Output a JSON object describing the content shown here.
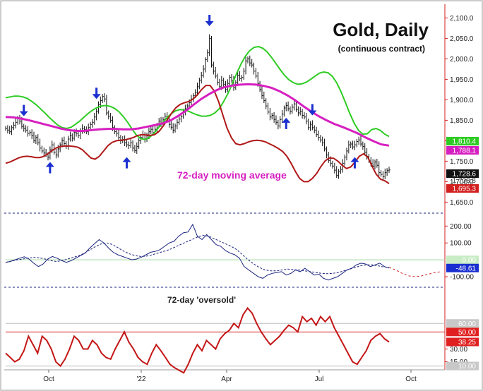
{
  "chart_data": {
    "type": "line",
    "title": "Gold, Daily",
    "subtitle": "(continuous contract)",
    "x_tick_labels": [
      "Oct",
      "'22",
      "Apr",
      "Jul",
      "Oct"
    ],
    "panels": [
      {
        "name": "price",
        "ylim": [
          1630,
          2130
        ],
        "y_ticks": [
          "2,100.0",
          "2,050.0",
          "2,000.0",
          "1,950.0",
          "1,900.0",
          "1,850.0",
          "1,800.0",
          "1,750.0",
          "1,700.0",
          "1,650.0"
        ],
        "y_tick_values": [
          2100,
          2050,
          2000,
          1950,
          1900,
          1850,
          1800,
          1750,
          1700,
          1650
        ],
        "annotation": "72-day moving average",
        "price_close": [
          1830,
          1826,
          1822,
          1832,
          1838,
          1845,
          1855,
          1848,
          1835,
          1830,
          1826,
          1818,
          1820,
          1812,
          1800,
          1808,
          1795,
          1782,
          1775,
          1770,
          1766,
          1760,
          1778,
          1790,
          1772,
          1765,
          1780,
          1790,
          1800,
          1793,
          1786,
          1804,
          1812,
          1806,
          1820,
          1818,
          1812,
          1823,
          1830,
          1827,
          1822,
          1832,
          1840,
          1845,
          1858,
          1872,
          1888,
          1898,
          1908,
          1902,
          1868,
          1860,
          1850,
          1832,
          1822,
          1818,
          1808,
          1800,
          1803,
          1795,
          1790,
          1788,
          1795,
          1782,
          1776,
          1786,
          1800,
          1808,
          1815,
          1803,
          1812,
          1822,
          1828,
          1820,
          1828,
          1838,
          1848,
          1842,
          1852,
          1860,
          1855,
          1840,
          1833,
          1826,
          1836,
          1845,
          1853,
          1860,
          1870,
          1878,
          1885,
          1893,
          1902,
          1910,
          1918,
          1932,
          1948,
          1960,
          1975,
          1998,
          2015,
          2050,
          1985,
          1970,
          1958,
          1943,
          1932,
          1948,
          1938,
          1925,
          1940,
          1955,
          1948,
          1930,
          1942,
          1960,
          1952,
          1955,
          1970,
          1995,
          2000,
          1990,
          1985,
          1970,
          1958,
          1940,
          1925,
          1910,
          1898,
          1885,
          1870,
          1858,
          1862,
          1852,
          1845,
          1836,
          1852,
          1865,
          1880,
          1886,
          1878,
          1872,
          1882,
          1890,
          1876,
          1868,
          1872,
          1862,
          1858,
          1848,
          1832,
          1840,
          1832,
          1826,
          1815,
          1808,
          1802,
          1795,
          1780,
          1765,
          1752,
          1745,
          1738,
          1728,
          1715,
          1725,
          1730,
          1745,
          1760,
          1775,
          1790,
          1792,
          1785,
          1790,
          1798,
          1802,
          1792,
          1786,
          1772,
          1762,
          1752,
          1745,
          1738,
          1748,
          1740,
          1722,
          1718,
          1712,
          1722,
          1727,
          1728.6
        ],
        "upper_band": [
          1905,
          1907,
          1909,
          1909,
          1907,
          1903,
          1896,
          1888,
          1878,
          1868,
          1857,
          1847,
          1838,
          1832,
          1830,
          1833,
          1840,
          1848,
          1858,
          1867,
          1875,
          1881,
          1885,
          1886,
          1884,
          1879,
          1871,
          1859,
          1845,
          1829,
          1814,
          1805,
          1803,
          1808,
          1818,
          1831,
          1844,
          1856,
          1866,
          1873,
          1876,
          1875,
          1872,
          1867,
          1863,
          1860,
          1860,
          1862,
          1868,
          1878,
          1895,
          1915,
          1939,
          1964,
          1987,
          2006,
          2020,
          2028,
          2030,
          2026,
          2017,
          2004,
          1989,
          1974,
          1960,
          1949,
          1942,
          1938,
          1939,
          1943,
          1950,
          1958,
          1965,
          1968,
          1966,
          1957,
          1941,
          1919,
          1893,
          1866,
          1843,
          1825,
          1816,
          1817,
          1827,
          1830,
          1825,
          1816,
          1810.4
        ],
        "lower_band": [
          1745,
          1748,
          1753,
          1758,
          1761,
          1762,
          1761,
          1759,
          1759,
          1762,
          1769,
          1777,
          1783,
          1786,
          1787,
          1787,
          1786,
          1784,
          1778,
          1768,
          1758,
          1755,
          1762,
          1775,
          1788,
          1796,
          1800,
          1801,
          1802,
          1805,
          1808,
          1813,
          1815,
          1814,
          1813,
          1815,
          1823,
          1836,
          1852,
          1868,
          1881,
          1889,
          1893,
          1896,
          1902,
          1912,
          1925,
          1935,
          1935,
          1921,
          1895,
          1862,
          1830,
          1807,
          1793,
          1790,
          1793,
          1797,
          1800,
          1801,
          1800,
          1797,
          1792,
          1787,
          1781,
          1774,
          1762,
          1745,
          1725,
          1708,
          1700,
          1700,
          1708,
          1720,
          1737,
          1751,
          1758,
          1757,
          1750,
          1740,
          1732,
          1736,
          1748,
          1762,
          1768,
          1760,
          1738,
          1718,
          1706,
          1702,
          1695.3
        ],
        "moving_average_72": [
          1858,
          1857,
          1854,
          1850,
          1845,
          1840,
          1835,
          1830,
          1826,
          1824,
          1824,
          1826,
          1828,
          1829,
          1829,
          1828,
          1828,
          1830,
          1834,
          1838,
          1842,
          1849,
          1860,
          1873,
          1888,
          1902,
          1914,
          1924,
          1931,
          1935,
          1937,
          1938,
          1937,
          1934,
          1929,
          1921,
          1911,
          1899,
          1885,
          1872,
          1860,
          1850,
          1841,
          1834,
          1826,
          1818,
          1808,
          1799,
          1791,
          1788.1
        ],
        "value_tags": [
          {
            "label": "1,810.4",
            "color": "#2ecc22"
          },
          {
            "label": "1,788.1",
            "color": "#d61fc0"
          },
          {
            "label": "1,728.6",
            "color": "#111111"
          },
          {
            "label": "1,695.3",
            "color": "#d21f1f"
          }
        ],
        "overlap_tag_text": "1,708.8",
        "arrows": [
          {
            "direction": "down",
            "x_day": 9
          },
          {
            "direction": "up",
            "x_day": 22
          },
          {
            "direction": "down",
            "x_day": 45
          },
          {
            "direction": "up",
            "x_day": 60
          },
          {
            "direction": "down",
            "x_day": 101
          },
          {
            "direction": "up",
            "x_day": 139
          },
          {
            "direction": "down",
            "x_day": 152
          },
          {
            "direction": "up",
            "x_day": 173
          }
        ]
      },
      {
        "name": "oscillator",
        "ylim": [
          -150,
          260
        ],
        "y_ticks": [
          "200.00",
          "100.00",
          "-100.00"
        ],
        "y_tick_values": [
          200,
          100,
          -100
        ],
        "reference_line": 0,
        "reference_tag": "0.00",
        "value_tag": "-48.61",
        "oscillator": [
          -15,
          -10,
          0,
          10,
          18,
          5,
          -20,
          -40,
          -25,
          5,
          20,
          10,
          -5,
          -15,
          -5,
          10,
          25,
          40,
          70,
          95,
          120,
          100,
          70,
          45,
          30,
          20,
          10,
          0,
          5,
          15,
          30,
          45,
          50,
          60,
          80,
          100,
          110,
          140,
          160,
          165,
          210,
          140,
          120,
          150,
          120,
          90,
          80,
          55,
          40,
          30,
          10,
          -40,
          -60,
          -80,
          -100,
          -110,
          -90,
          -80,
          -75,
          -70,
          -90,
          -80,
          -60,
          -70,
          -50,
          -70,
          -90,
          -85,
          -110,
          -120,
          -110,
          -100,
          -80,
          -60,
          -50,
          -30,
          -20,
          -25,
          -40,
          -30,
          -20,
          -40,
          -48.61
        ],
        "oscillator_ma": [
          -15,
          -8,
          0,
          5,
          10,
          15,
          12,
          5,
          -5,
          -10,
          -5,
          5,
          15,
          25,
          40,
          60,
          80,
          95,
          100,
          90,
          70,
          50,
          35,
          25,
          20,
          22,
          30,
          40,
          50,
          60,
          75,
          90,
          105,
          120,
          135,
          145,
          140,
          125,
          110,
          95,
          80,
          60,
          30,
          0,
          -25,
          -45,
          -60,
          -65,
          -65,
          -60,
          -55,
          -58,
          -60,
          -65,
          -70,
          -75,
          -80,
          -82,
          -80,
          -75,
          -65,
          -55,
          -45,
          -35,
          -30,
          -30,
          -35,
          -42,
          -45
        ],
        "projection": [
          -45,
          -60,
          -80,
          -95,
          -100,
          -95,
          -85,
          -75,
          -70
        ]
      },
      {
        "name": "oversold_indicator",
        "ylim": [
          8,
          100
        ],
        "y_ticks": [
          "30.00",
          "15.00"
        ],
        "y_tick_values": [
          30,
          15
        ],
        "annotation": "72-day 'oversold'",
        "reference_lines": [
          {
            "value": 60,
            "tag": "60.00"
          },
          {
            "value": 50,
            "tag": "50.00"
          },
          {
            "value": 10,
            "tag": "10.00"
          }
        ],
        "value_tag": "38.25",
        "oversold": [
          25,
          20,
          15,
          18,
          28,
          45,
          35,
          25,
          45,
          40,
          30,
          15,
          10,
          18,
          30,
          45,
          40,
          30,
          30,
          40,
          35,
          25,
          20,
          18,
          30,
          40,
          50,
          38,
          30,
          20,
          15,
          12,
          25,
          35,
          28,
          20,
          12,
          8,
          5,
          2,
          12,
          25,
          35,
          28,
          40,
          35,
          30,
          42,
          48,
          52,
          60,
          55,
          70,
          78,
          72,
          60,
          50,
          42,
          35,
          40,
          45,
          52,
          58,
          55,
          50,
          68,
          62,
          66,
          58,
          68,
          62,
          68,
          55,
          45,
          35,
          25,
          15,
          12,
          20,
          28,
          40,
          45,
          48,
          42,
          38.25
        ]
      }
    ]
  }
}
